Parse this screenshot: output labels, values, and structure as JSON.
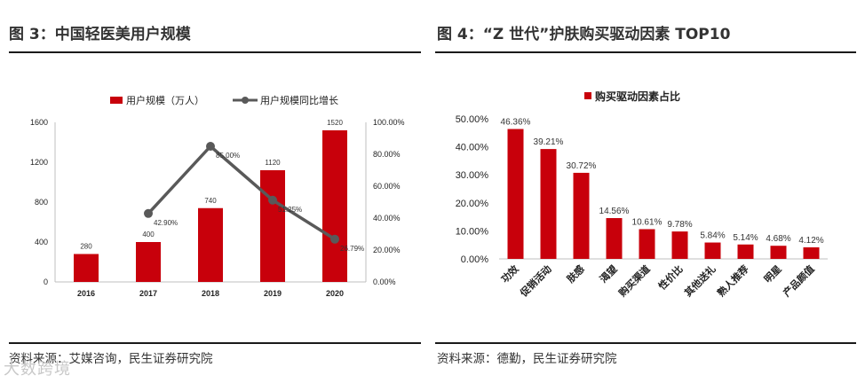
{
  "left": {
    "title": "图 3：中国轻医美用户规模",
    "source": "资料来源：艾媒咨询，民生证券研究院"
  },
  "right": {
    "title": "图 4：“Z 世代”护肤购买驱动因素 TOP10",
    "source": "资料来源：德勤，民生证券研究院"
  },
  "watermark": "大数跨境",
  "colors": {
    "bar": "#c8000b",
    "line": "#595959"
  },
  "chart_data": [
    {
      "type": "bar",
      "combo": "bar+line",
      "title": "",
      "categories": [
        "2016",
        "2017",
        "2018",
        "2019",
        "2020"
      ],
      "series": [
        {
          "name": "用户规模（万人）",
          "kind": "bar",
          "axis": "left",
          "values": [
            280,
            400,
            740,
            1120,
            1520
          ],
          "labels": [
            "280",
            "400",
            "740",
            "1120",
            "1520"
          ]
        },
        {
          "name": "用户规模同比增长",
          "kind": "line",
          "axis": "right",
          "values": [
            null,
            42.9,
            85.0,
            51.25,
            26.79
          ],
          "labels": [
            "",
            "42.90%",
            "85.00%",
            "51.25%",
            "26.79%"
          ]
        }
      ],
      "y_left": {
        "ylim": [
          0,
          1600
        ],
        "ticks": [
          0,
          400,
          800,
          1200,
          1600
        ],
        "tick_labels": [
          "0",
          "400",
          "800",
          "1200",
          "1600"
        ]
      },
      "y_right": {
        "ylim": [
          0,
          100
        ],
        "ticks": [
          0,
          20,
          40,
          60,
          80,
          100
        ],
        "tick_labels": [
          "0.00%",
          "20.00%",
          "40.00%",
          "60.00%",
          "80.00%",
          "100.00%"
        ]
      },
      "legend_position": "top",
      "grid": false
    },
    {
      "type": "bar",
      "title": "",
      "categories": [
        "功效",
        "促销活动",
        "肤感",
        "渴望",
        "购买渠道",
        "性价比",
        "其他送礼",
        "熟人推荐",
        "明星",
        "产品颜值"
      ],
      "series": [
        {
          "name": "购买驱动因素占比",
          "values": [
            46.36,
            39.21,
            30.72,
            14.56,
            10.61,
            9.78,
            5.84,
            5.14,
            4.68,
            4.12
          ],
          "labels": [
            "46.36%",
            "39.21%",
            "30.72%",
            "14.56%",
            "10.61%",
            "9.78%",
            "5.84%",
            "5.14%",
            "4.68%",
            "4.12%"
          ]
        }
      ],
      "ylim": [
        0,
        50
      ],
      "ticks": [
        0,
        10,
        20,
        30,
        40,
        50
      ],
      "tick_labels": [
        "0.00%",
        "10.00%",
        "20.00%",
        "30.00%",
        "40.00%",
        "50.00%"
      ],
      "legend_position": "top",
      "grid": false
    }
  ]
}
